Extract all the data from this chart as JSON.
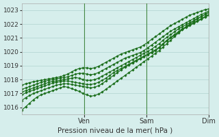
{
  "xlabel": "Pression niveau de la mer( hPa )",
  "ylim": [
    1015.5,
    1023.5
  ],
  "xlim": [
    0,
    72
  ],
  "yticks": [
    1016,
    1017,
    1018,
    1019,
    1020,
    1021,
    1022,
    1023
  ],
  "xtick_positions": [
    24,
    48,
    72
  ],
  "xtick_labels": [
    "Ven",
    "Sam",
    "Dim"
  ],
  "bg_color": "#d6eeec",
  "grid_color": "#b0d4d0",
  "line_color": "#1a6e1a",
  "markersize": 1.8,
  "linewidth": 0.8,
  "series": [
    [
      1015.8,
      1016.05,
      1016.3,
      1016.55,
      1016.75,
      1016.9,
      1017.0,
      1017.1,
      1017.2,
      1017.3,
      1017.4,
      1017.5,
      1017.45,
      1017.35,
      1017.25,
      1017.15,
      1017.0,
      1016.9,
      1016.8,
      1016.85,
      1016.95,
      1017.1,
      1017.3,
      1017.5,
      1017.7,
      1017.9,
      1018.1,
      1018.3,
      1018.5,
      1018.7,
      1018.9,
      1019.1,
      1019.3,
      1019.5,
      1019.7,
      1019.9,
      1020.1,
      1020.35,
      1020.6,
      1020.85,
      1021.1,
      1021.35,
      1021.6,
      1021.8,
      1022.0,
      1022.2,
      1022.4,
      1022.55,
      1022.7,
      1022.85
    ],
    [
      1016.5,
      1016.7,
      1016.85,
      1017.0,
      1017.1,
      1017.2,
      1017.3,
      1017.4,
      1017.5,
      1017.6,
      1017.65,
      1017.7,
      1017.7,
      1017.65,
      1017.6,
      1017.55,
      1017.5,
      1017.45,
      1017.4,
      1017.45,
      1017.55,
      1017.7,
      1017.9,
      1018.1,
      1018.3,
      1018.5,
      1018.7,
      1018.9,
      1019.05,
      1019.2,
      1019.35,
      1019.5,
      1019.65,
      1019.8,
      1019.95,
      1020.1,
      1020.3,
      1020.55,
      1020.8,
      1021.0,
      1021.2,
      1021.4,
      1021.6,
      1021.75,
      1021.9,
      1022.05,
      1022.2,
      1022.35,
      1022.5,
      1022.65
    ],
    [
      1016.9,
      1017.05,
      1017.15,
      1017.25,
      1017.35,
      1017.45,
      1017.55,
      1017.65,
      1017.75,
      1017.8,
      1017.85,
      1017.9,
      1017.9,
      1017.85,
      1017.8,
      1017.75,
      1017.7,
      1017.65,
      1017.65,
      1017.7,
      1017.8,
      1017.95,
      1018.1,
      1018.3,
      1018.5,
      1018.65,
      1018.8,
      1018.95,
      1019.1,
      1019.25,
      1019.4,
      1019.55,
      1019.7,
      1019.85,
      1020.0,
      1020.15,
      1020.35,
      1020.6,
      1020.85,
      1021.05,
      1021.25,
      1021.45,
      1021.65,
      1021.8,
      1021.95,
      1022.1,
      1022.25,
      1022.4,
      1022.55,
      1022.7
    ],
    [
      1017.1,
      1017.2,
      1017.3,
      1017.4,
      1017.5,
      1017.6,
      1017.7,
      1017.8,
      1017.88,
      1017.9,
      1017.95,
      1018.0,
      1018.05,
      1018.1,
      1018.15,
      1018.1,
      1018.0,
      1017.95,
      1017.95,
      1018.0,
      1018.1,
      1018.25,
      1018.4,
      1018.55,
      1018.7,
      1018.85,
      1019.0,
      1019.15,
      1019.3,
      1019.45,
      1019.6,
      1019.75,
      1019.9,
      1020.05,
      1020.2,
      1020.4,
      1020.6,
      1020.85,
      1021.05,
      1021.25,
      1021.45,
      1021.65,
      1021.8,
      1021.95,
      1022.1,
      1022.25,
      1022.4,
      1022.55,
      1022.7,
      1022.85
    ],
    [
      1017.3,
      1017.4,
      1017.5,
      1017.6,
      1017.7,
      1017.8,
      1017.88,
      1017.95,
      1018.0,
      1018.05,
      1018.1,
      1018.15,
      1018.2,
      1018.3,
      1018.4,
      1018.45,
      1018.45,
      1018.4,
      1018.35,
      1018.4,
      1018.5,
      1018.65,
      1018.8,
      1018.95,
      1019.1,
      1019.25,
      1019.4,
      1019.55,
      1019.65,
      1019.75,
      1019.85,
      1019.95,
      1020.1,
      1020.3,
      1020.5,
      1020.7,
      1020.9,
      1021.1,
      1021.3,
      1021.5,
      1021.65,
      1021.8,
      1021.95,
      1022.1,
      1022.25,
      1022.4,
      1022.55,
      1022.7,
      1022.82,
      1022.95
    ],
    [
      1017.6,
      1017.7,
      1017.78,
      1017.85,
      1017.9,
      1017.95,
      1018.0,
      1018.05,
      1018.1,
      1018.15,
      1018.2,
      1018.3,
      1018.4,
      1018.55,
      1018.7,
      1018.8,
      1018.85,
      1018.85,
      1018.8,
      1018.85,
      1018.95,
      1019.1,
      1019.25,
      1019.4,
      1019.55,
      1019.7,
      1019.85,
      1019.95,
      1020.05,
      1020.15,
      1020.25,
      1020.35,
      1020.5,
      1020.7,
      1020.9,
      1021.1,
      1021.3,
      1021.5,
      1021.7,
      1021.9,
      1022.05,
      1022.2,
      1022.35,
      1022.5,
      1022.65,
      1022.75,
      1022.85,
      1022.95,
      1023.05,
      1023.1
    ]
  ]
}
